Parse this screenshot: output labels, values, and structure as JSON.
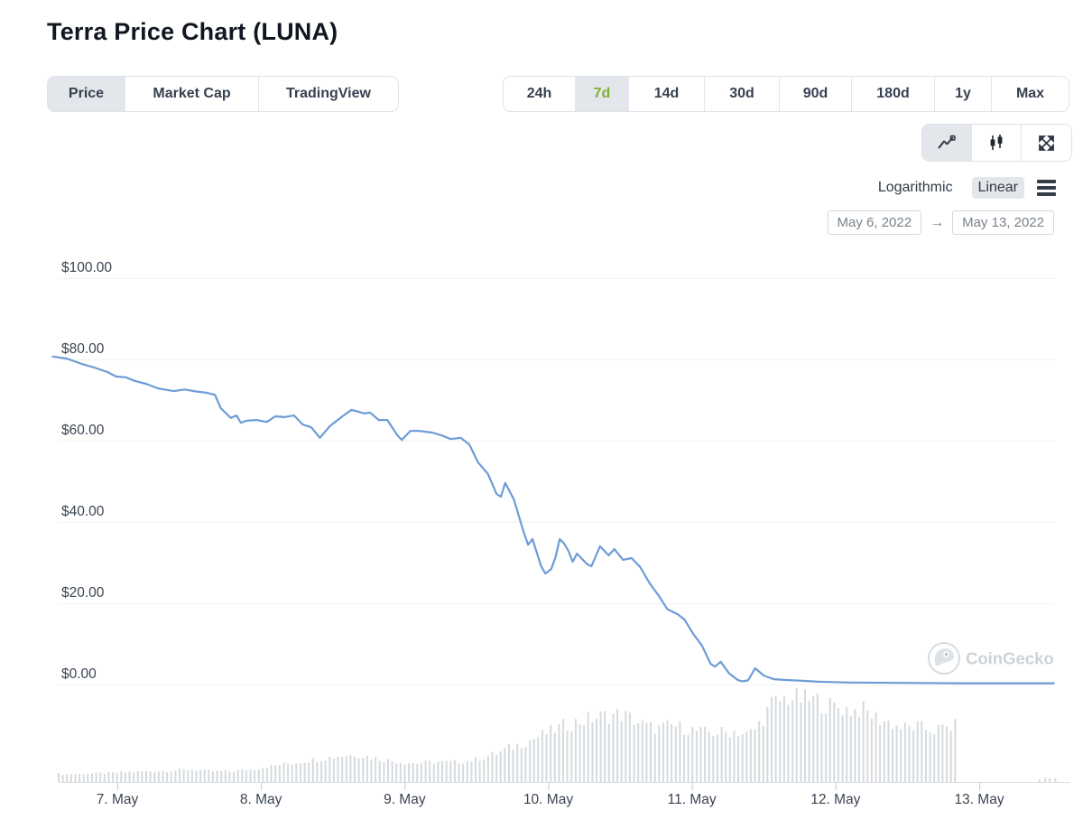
{
  "page": {
    "title": "Terra Price Chart (LUNA)"
  },
  "chart_tabs": [
    {
      "id": "price",
      "label": "Price",
      "selected": true
    },
    {
      "id": "market-cap",
      "label": "Market Cap",
      "selected": false
    },
    {
      "id": "tradingview",
      "label": "TradingView",
      "selected": false
    }
  ],
  "range_tabs": [
    {
      "id": "24h",
      "label": "24h",
      "selected": false
    },
    {
      "id": "7d",
      "label": "7d",
      "selected": true
    },
    {
      "id": "14d",
      "label": "14d",
      "selected": false
    },
    {
      "id": "30d",
      "label": "30d",
      "selected": false
    },
    {
      "id": "90d",
      "label": "90d",
      "selected": false
    },
    {
      "id": "180d",
      "label": "180d",
      "selected": false
    },
    {
      "id": "1y",
      "label": "1y",
      "selected": false
    },
    {
      "id": "max",
      "label": "Max",
      "selected": false
    }
  ],
  "chart_type_toggle": [
    {
      "id": "line",
      "icon": "line-chart-icon",
      "selected": true
    },
    {
      "id": "candlestick",
      "icon": "candlestick-icon",
      "selected": false
    },
    {
      "id": "fullscreen",
      "icon": "fullscreen-icon",
      "selected": false
    }
  ],
  "scale_toggle": {
    "options": [
      "Logarithmic",
      "Linear"
    ],
    "selected": "Linear"
  },
  "date_range": {
    "from": "May 6, 2022",
    "to": "May 13, 2022",
    "arrow": "→"
  },
  "watermark": {
    "label": "CoinGecko",
    "icon": "coingecko-gecko-icon"
  },
  "colors": {
    "accent_green": "#7fb136",
    "line_blue": "#6d9cd6",
    "volume_gray": "#d5dade",
    "gridline": "#f1f2f4",
    "axis_line": "#dde1e6",
    "tick": "#c6ccd2",
    "axis_text": "#3b4552",
    "selected_bg": "#e3e6ea",
    "watermark_gray": "#ccd2d8"
  },
  "chart_data": {
    "type": "line",
    "title": "Terra Price Chart (LUNA)",
    "subtitle": "LUNA/USD price with volume, May 6 2022 - May 13 2022",
    "grid": "horizontal",
    "legend": "none",
    "y_axis": {
      "values": [
        100,
        80,
        60,
        40,
        20,
        0
      ],
      "labels": [
        "$100.00",
        "$80.00",
        "$60.00",
        "$40.00",
        "$20.00",
        "$0.00"
      ],
      "ylim": [
        0,
        108
      ]
    },
    "x_axis": {
      "tick_days": [
        7,
        8,
        9,
        10,
        11,
        12,
        13
      ],
      "tick_labels": [
        "7. May",
        "8. May",
        "9. May",
        "10. May",
        "11. May",
        "12. May",
        "13. May"
      ],
      "range_days": [
        6.55,
        13.62
      ]
    },
    "price_series": {
      "name": "LUNA price (USD)",
      "x_unit": "day of May 2022 (fractional)",
      "points": [
        [
          6.55,
          80.7
        ],
        [
          6.65,
          80.2
        ],
        [
          6.75,
          78.9
        ],
        [
          6.84,
          78.0
        ],
        [
          6.93,
          76.9
        ],
        [
          6.99,
          75.8
        ],
        [
          7.06,
          75.6
        ],
        [
          7.12,
          74.7
        ],
        [
          7.2,
          74.0
        ],
        [
          7.28,
          72.9
        ],
        [
          7.39,
          72.2
        ],
        [
          7.47,
          72.6
        ],
        [
          7.53,
          72.2
        ],
        [
          7.62,
          71.8
        ],
        [
          7.68,
          71.3
        ],
        [
          7.72,
          68.0
        ],
        [
          7.79,
          65.6
        ],
        [
          7.83,
          66.2
        ],
        [
          7.86,
          64.4
        ],
        [
          7.9,
          64.9
        ],
        [
          7.97,
          65.1
        ],
        [
          8.04,
          64.6
        ],
        [
          8.1,
          66.0
        ],
        [
          8.16,
          65.8
        ],
        [
          8.23,
          66.2
        ],
        [
          8.29,
          64.0
        ],
        [
          8.35,
          63.3
        ],
        [
          8.41,
          60.7
        ],
        [
          8.48,
          63.6
        ],
        [
          8.56,
          65.8
        ],
        [
          8.63,
          67.6
        ],
        [
          8.72,
          66.7
        ],
        [
          8.76,
          66.9
        ],
        [
          8.82,
          65.1
        ],
        [
          8.88,
          65.1
        ],
        [
          8.95,
          61.3
        ],
        [
          8.98,
          60.2
        ],
        [
          9.04,
          62.4
        ],
        [
          9.1,
          62.4
        ],
        [
          9.19,
          62.0
        ],
        [
          9.26,
          61.3
        ],
        [
          9.32,
          60.4
        ],
        [
          9.39,
          60.7
        ],
        [
          9.45,
          59.1
        ],
        [
          9.51,
          54.7
        ],
        [
          9.58,
          51.8
        ],
        [
          9.64,
          46.9
        ],
        [
          9.67,
          46.2
        ],
        [
          9.7,
          49.6
        ],
        [
          9.76,
          45.6
        ],
        [
          9.83,
          37.3
        ],
        [
          9.86,
          34.4
        ],
        [
          9.89,
          35.8
        ],
        [
          9.95,
          29.1
        ],
        [
          9.98,
          27.3
        ],
        [
          10.02,
          28.4
        ],
        [
          10.05,
          31.3
        ],
        [
          10.08,
          35.8
        ],
        [
          10.11,
          34.7
        ],
        [
          10.14,
          32.9
        ],
        [
          10.17,
          30.2
        ],
        [
          10.2,
          32.2
        ],
        [
          10.27,
          29.6
        ],
        [
          10.3,
          29.1
        ],
        [
          10.36,
          34.0
        ],
        [
          10.42,
          31.8
        ],
        [
          10.46,
          33.3
        ],
        [
          10.52,
          30.7
        ],
        [
          10.58,
          31.1
        ],
        [
          10.64,
          28.9
        ],
        [
          10.71,
          24.7
        ],
        [
          10.77,
          21.8
        ],
        [
          10.83,
          18.5
        ],
        [
          10.9,
          17.3
        ],
        [
          10.95,
          15.9
        ],
        [
          11.01,
          12.4
        ],
        [
          11.07,
          9.6
        ],
        [
          11.13,
          5.1
        ],
        [
          11.16,
          4.4
        ],
        [
          11.2,
          5.6
        ],
        [
          11.26,
          2.7
        ],
        [
          11.32,
          1.1
        ],
        [
          11.35,
          0.8
        ],
        [
          11.39,
          1.0
        ],
        [
          11.44,
          4.0
        ],
        [
          11.5,
          2.2
        ],
        [
          11.57,
          1.3
        ],
        [
          11.67,
          1.1
        ],
        [
          11.77,
          0.9
        ],
        [
          11.88,
          0.7
        ],
        [
          12.09,
          0.5
        ],
        [
          12.47,
          0.4
        ],
        [
          12.84,
          0.3
        ],
        [
          13.22,
          0.3
        ],
        [
          13.52,
          0.3
        ]
      ]
    },
    "volume_series": {
      "name": "trading volume (relative, % of max)",
      "x_unit": "day of May 2022 (fractional)",
      "envelope": [
        [
          6.59,
          9
        ],
        [
          6.75,
          9
        ],
        [
          6.91,
          10
        ],
        [
          7.06,
          11
        ],
        [
          7.22,
          12
        ],
        [
          7.38,
          13
        ],
        [
          7.53,
          14
        ],
        [
          7.66,
          12
        ],
        [
          7.79,
          12
        ],
        [
          7.91,
          14
        ],
        [
          8.04,
          17
        ],
        [
          8.16,
          20
        ],
        [
          8.29,
          23
        ],
        [
          8.41,
          26
        ],
        [
          8.54,
          29
        ],
        [
          8.66,
          31
        ],
        [
          8.76,
          28
        ],
        [
          8.85,
          25
        ],
        [
          8.95,
          23
        ],
        [
          9.07,
          21
        ],
        [
          9.2,
          22
        ],
        [
          9.32,
          22
        ],
        [
          9.45,
          24
        ],
        [
          9.54,
          27
        ],
        [
          9.64,
          32
        ],
        [
          9.73,
          38
        ],
        [
          9.83,
          44
        ],
        [
          9.92,
          50
        ],
        [
          10.02,
          57
        ],
        [
          10.11,
          63
        ],
        [
          10.2,
          67
        ],
        [
          10.3,
          71
        ],
        [
          10.39,
          74
        ],
        [
          10.49,
          76
        ],
        [
          10.55,
          73
        ],
        [
          10.61,
          68
        ],
        [
          10.68,
          62
        ],
        [
          10.77,
          60
        ],
        [
          10.86,
          63
        ],
        [
          10.96,
          60
        ],
        [
          11.05,
          56
        ],
        [
          11.15,
          55
        ],
        [
          11.24,
          56
        ],
        [
          11.3,
          57
        ],
        [
          11.37,
          53
        ],
        [
          11.43,
          57
        ],
        [
          11.49,
          70
        ],
        [
          11.56,
          88
        ],
        [
          11.62,
          91
        ],
        [
          11.68,
          95
        ],
        [
          11.74,
          93
        ],
        [
          11.81,
          92
        ],
        [
          11.87,
          91
        ],
        [
          11.93,
          86
        ],
        [
          12.0,
          84
        ],
        [
          12.06,
          82
        ],
        [
          12.12,
          80
        ],
        [
          12.18,
          82
        ],
        [
          12.25,
          75
        ],
        [
          12.31,
          70
        ],
        [
          12.37,
          67
        ],
        [
          12.43,
          62
        ],
        [
          12.5,
          60
        ],
        [
          12.56,
          62
        ],
        [
          12.62,
          60
        ],
        [
          12.69,
          58
        ],
        [
          12.75,
          60
        ],
        [
          12.81,
          62
        ],
        [
          12.86,
          63
        ]
      ],
      "data_cutoff_day": 12.86,
      "tail_bars": [
        [
          13.42,
          3
        ],
        [
          13.46,
          5
        ],
        [
          13.49,
          4
        ],
        [
          13.53,
          4
        ]
      ]
    }
  }
}
